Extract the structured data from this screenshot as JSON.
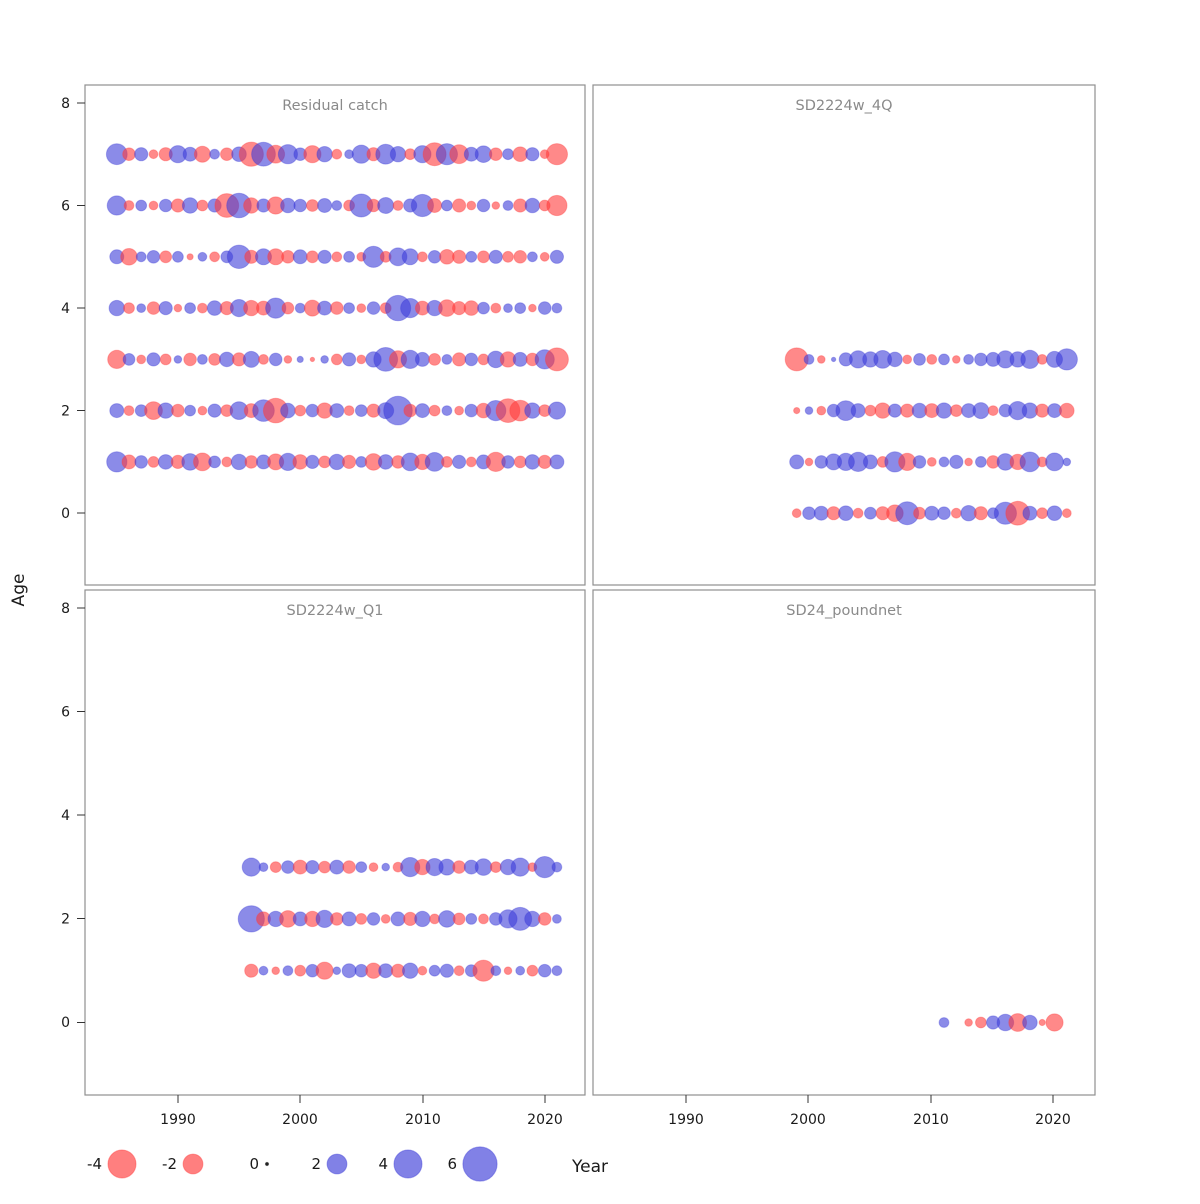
{
  "figure": {
    "xlabel": "Year",
    "ylabel": "Age"
  },
  "axes": {
    "x_ticks": [
      "1990",
      "2000",
      "2010",
      "2020"
    ],
    "y_ticks": [
      "8",
      "6",
      "4",
      "2",
      "0"
    ]
  },
  "colors": {
    "negative": "#ff3b3b",
    "positive": "#3d3dd8",
    "zero": "#222222"
  },
  "legend": {
    "items": [
      {
        "label": "-4",
        "value": -4
      },
      {
        "label": "-2",
        "value": -2
      },
      {
        "label": "0",
        "value": 0
      },
      {
        "label": "2",
        "value": 2
      },
      {
        "label": "4",
        "value": 4
      },
      {
        "label": "6",
        "value": 6
      }
    ]
  },
  "chart_data": [
    {
      "type": "scatter",
      "title": "Residual catch",
      "position": "top-left",
      "xlabel": "Year",
      "ylabel": "Age",
      "x_range": [
        1983,
        2023
      ],
      "y_range": [
        -1,
        8.5
      ],
      "encoding": "bubble area = |residual|, red = negative, blue = positive",
      "rows": [
        {
          "age": 7,
          "start_year": 1985,
          "values": [
            2.2,
            -0.8,
            0.9,
            -0.4,
            -0.9,
            1.5,
            1.0,
            -1.3,
            0.5,
            -0.8,
            1.1,
            -3.0,
            2.9,
            -1.6,
            1.9,
            0.8,
            -1.5,
            1.2,
            -0.5,
            0.4,
            1.7,
            -0.9,
            2.0,
            1.2,
            -0.6,
            1.5,
            -2.7,
            2.3,
            -1.8,
            1.0,
            1.4,
            -0.8,
            0.6,
            -1.1,
            0.9,
            -0.4,
            -2.3
          ]
        },
        {
          "age": 6,
          "start_year": 1985,
          "values": [
            1.9,
            -0.5,
            0.6,
            -0.4,
            0.8,
            -0.9,
            1.2,
            -0.6,
            0.9,
            -2.9,
            3.1,
            -1.2,
            0.9,
            -1.5,
            1.1,
            0.8,
            -0.7,
            1.0,
            0.5,
            -0.6,
            2.7,
            -0.8,
            1.3,
            -0.5,
            0.9,
            2.5,
            -1.0,
            0.6,
            -0.9,
            -0.4,
            0.8,
            -0.3,
            0.5,
            -0.9,
            1.1,
            -0.6,
            -2.1
          ]
        },
        {
          "age": 5,
          "start_year": 1985,
          "values": [
            1.0,
            -1.4,
            0.5,
            0.8,
            -0.7,
            0.6,
            -0.2,
            0.4,
            -0.5,
            0.7,
            2.8,
            -0.9,
            1.3,
            -1.3,
            -0.8,
            1.0,
            -0.7,
            0.9,
            -0.5,
            0.6,
            -0.4,
            2.3,
            -0.6,
            1.6,
            1.3,
            -0.5,
            0.8,
            -1.1,
            -0.9,
            0.6,
            -0.7,
            0.9,
            -0.6,
            -0.8,
            0.5,
            -0.4,
            0.9
          ]
        },
        {
          "age": 4,
          "start_year": 1985,
          "values": [
            1.2,
            -0.6,
            0.4,
            -0.8,
            0.9,
            -0.3,
            0.6,
            -0.5,
            1.1,
            -0.9,
            1.5,
            -1.2,
            -1.0,
            2.1,
            -0.7,
            0.5,
            -1.3,
            1.0,
            -0.8,
            0.6,
            -0.4,
            0.8,
            -0.6,
            3.3,
            1.9,
            -1.0,
            1.2,
            -1.4,
            -0.9,
            -1.1,
            0.7,
            -0.5,
            0.4,
            0.6,
            -0.3,
            0.8,
            0.5
          ]
        },
        {
          "age": 3,
          "start_year": 1985,
          "values": [
            -1.7,
            0.7,
            -0.4,
            0.9,
            -0.6,
            0.3,
            -0.8,
            0.5,
            -0.7,
            1.1,
            -0.9,
            1.3,
            -0.5,
            0.8,
            -0.3,
            0.2,
            -0.1,
            0.3,
            -0.6,
            0.9,
            -0.4,
            1.2,
            2.9,
            -1.5,
            1.7,
            1.0,
            -0.7,
            0.5,
            -0.9,
            0.8,
            -0.6,
            1.4,
            -1.2,
            1.0,
            -0.8,
            1.9,
            -2.7
          ]
        },
        {
          "age": 2,
          "start_year": 1985,
          "values": [
            1.0,
            -0.5,
            0.7,
            -1.6,
            1.2,
            -0.8,
            0.6,
            -0.4,
            0.9,
            -0.7,
            1.6,
            -1.0,
            2.4,
            -3.1,
            1.1,
            -0.6,
            0.8,
            -1.2,
            1.0,
            -0.5,
            0.7,
            -0.9,
            1.3,
            4.2,
            -0.8,
            1.0,
            -0.6,
            0.5,
            -0.4,
            0.8,
            -1.1,
            2.1,
            -2.9,
            -2.2,
            1.2,
            -0.7,
            1.5
          ]
        },
        {
          "age": 1,
          "start_year": 1985,
          "values": [
            2.1,
            -1.0,
            0.8,
            -0.6,
            1.1,
            -0.9,
            1.4,
            -1.6,
            0.7,
            -0.5,
            1.2,
            -0.8,
            1.0,
            -1.3,
            1.5,
            -1.1,
            0.9,
            -0.7,
            1.2,
            -0.9,
            0.6,
            -1.4,
            1.1,
            -0.8,
            1.6,
            -1.2,
            1.8,
            -0.6,
            0.9,
            -0.5,
            1.0,
            -1.9,
            0.8,
            -0.7,
            1.1,
            -0.9,
            1.0
          ]
        }
      ]
    },
    {
      "type": "scatter",
      "title": "SD2224w_4Q",
      "position": "top-right",
      "xlabel": "Year",
      "ylabel": "Age",
      "x_range": [
        1983,
        2023
      ],
      "y_range": [
        -1,
        8.5
      ],
      "encoding": "bubble area = |residual|, red = negative, blue = positive",
      "rows": [
        {
          "age": 3,
          "start_year": 1999,
          "values": [
            -2.7,
            0.5,
            -0.3,
            0.1,
            0.9,
            1.5,
            1.2,
            1.6,
            1.1,
            -0.4,
            0.7,
            -0.5,
            0.6,
            -0.3,
            0.5,
            0.8,
            1.0,
            1.5,
            1.2,
            1.7,
            -0.5,
            1.3,
            2.3
          ]
        },
        {
          "age": 2,
          "start_year": 1999,
          "values": [
            -0.2,
            0.3,
            -0.4,
            0.8,
            2.0,
            1.0,
            -0.6,
            -1.2,
            0.9,
            -0.9,
            1.1,
            -1.0,
            1.2,
            -0.7,
            1.0,
            1.3,
            -0.5,
            0.8,
            1.7,
            1.2,
            -0.9,
            1.0,
            -1.1
          ]
        },
        {
          "age": 1,
          "start_year": 1999,
          "values": [
            1.0,
            -0.3,
            0.8,
            1.3,
            1.5,
            1.9,
            1.0,
            -0.6,
            2.1,
            -1.5,
            0.8,
            -0.4,
            0.5,
            0.9,
            -0.3,
            0.6,
            -0.8,
            1.4,
            -1.2,
            2.0,
            -0.5,
            1.6,
            0.3
          ]
        },
        {
          "age": 0,
          "start_year": 1999,
          "values": [
            -0.4,
            0.8,
            1.0,
            -0.9,
            1.1,
            -0.5,
            0.7,
            -0.9,
            -1.4,
            2.7,
            -0.7,
            1.0,
            0.8,
            -0.5,
            1.2,
            -0.9,
            0.6,
            2.5,
            -2.9,
            1.0,
            -0.6,
            1.1,
            -0.4
          ]
        }
      ]
    },
    {
      "type": "scatter",
      "title": "SD2224w_Q1",
      "position": "bottom-left",
      "xlabel": "Year",
      "ylabel": "Age",
      "x_range": [
        1983,
        2023
      ],
      "y_range": [
        -1,
        8.5
      ],
      "encoding": "bubble area = |residual|, red = negative, blue = positive",
      "rows": [
        {
          "age": 3,
          "start_year": 1996,
          "values": [
            1.7,
            0.4,
            -0.6,
            0.8,
            -1.0,
            0.9,
            -0.7,
            1.0,
            -0.8,
            0.6,
            -0.4,
            0.3,
            -0.5,
            1.9,
            -1.2,
            1.5,
            1.3,
            -0.8,
            1.0,
            1.4,
            -0.6,
            1.2,
            1.7,
            -0.4,
            2.3,
            0.5
          ]
        },
        {
          "age": 2,
          "start_year": 1996,
          "values": [
            3.5,
            -1.0,
            1.2,
            -1.4,
            1.0,
            -1.2,
            1.5,
            -0.8,
            1.0,
            -0.6,
            0.8,
            -0.4,
            1.0,
            -0.9,
            1.2,
            -0.5,
            1.4,
            -0.7,
            0.6,
            -0.5,
            0.8,
            1.7,
            2.7,
            1.2,
            -0.8,
            0.4
          ]
        },
        {
          "age": 1,
          "start_year": 1996,
          "values": [
            -0.9,
            0.4,
            -0.3,
            0.5,
            -0.6,
            0.8,
            -1.5,
            0.3,
            1.0,
            0.8,
            -1.2,
            1.0,
            -0.9,
            1.2,
            -0.4,
            0.6,
            0.9,
            -0.5,
            0.7,
            -2.3,
            0.5,
            -0.3,
            0.4,
            -0.6,
            0.8,
            0.5
          ]
        }
      ]
    },
    {
      "type": "scatter",
      "title": "SD24_poundnet",
      "position": "bottom-right",
      "xlabel": "Year",
      "ylabel": "Age",
      "x_range": [
        1983,
        2023
      ],
      "y_range": [
        -1,
        8.5
      ],
      "encoding": "bubble area = |residual|, red = negative, blue = positive",
      "rows": [
        {
          "age": 0,
          "start_year": 2011,
          "values": [
            0.5,
            null,
            -0.3,
            -0.6,
            0.9,
            1.4,
            -1.6,
            1.1,
            -0.2,
            -1.5
          ]
        }
      ]
    }
  ]
}
